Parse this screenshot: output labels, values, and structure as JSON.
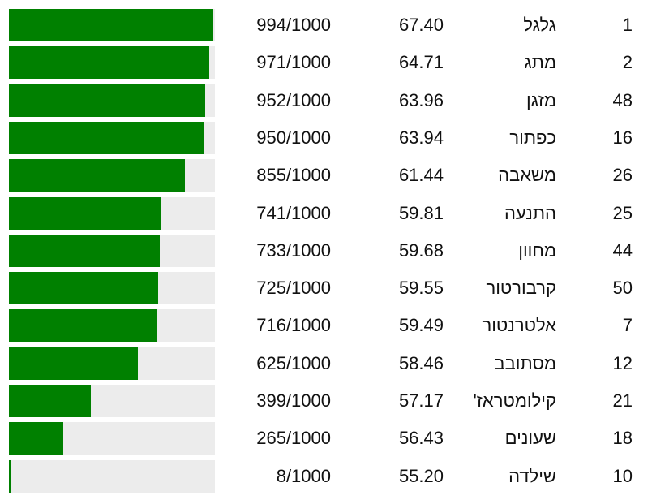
{
  "bar_range": [
    0,
    1000
  ],
  "rows": [
    {
      "rank": 1,
      "word": "גלגל",
      "similarity": "67.40",
      "progress": {
        "value": 994,
        "label": "994/1000"
      }
    },
    {
      "rank": 2,
      "word": "מתג",
      "similarity": "64.71",
      "progress": {
        "value": 971,
        "label": "971/1000"
      }
    },
    {
      "rank": 48,
      "word": "מזגן",
      "similarity": "63.96",
      "progress": {
        "value": 952,
        "label": "952/1000"
      }
    },
    {
      "rank": 16,
      "word": "כפתור",
      "similarity": "63.94",
      "progress": {
        "value": 950,
        "label": "950/1000"
      }
    },
    {
      "rank": 26,
      "word": "משאבה",
      "similarity": "61.44",
      "progress": {
        "value": 855,
        "label": "855/1000"
      }
    },
    {
      "rank": 25,
      "word": "התנעה",
      "similarity": "59.81",
      "progress": {
        "value": 741,
        "label": "741/1000"
      }
    },
    {
      "rank": 44,
      "word": "מחוון",
      "similarity": "59.68",
      "progress": {
        "value": 733,
        "label": "733/1000"
      }
    },
    {
      "rank": 50,
      "word": "קרבורטור",
      "similarity": "59.55",
      "progress": {
        "value": 725,
        "label": "725/1000"
      }
    },
    {
      "rank": 7,
      "word": "אלטרנטור",
      "similarity": "59.49",
      "progress": {
        "value": 716,
        "label": "716/1000"
      }
    },
    {
      "rank": 12,
      "word": "מסתובב",
      "similarity": "58.46",
      "progress": {
        "value": 625,
        "label": "625/1000"
      }
    },
    {
      "rank": 21,
      "word": "קילומטראז'",
      "similarity": "57.17",
      "progress": {
        "value": 399,
        "label": "399/1000"
      }
    },
    {
      "rank": 18,
      "word": "שעונים",
      "similarity": "56.43",
      "progress": {
        "value": 265,
        "label": "265/1000"
      }
    },
    {
      "rank": 10,
      "word": "שילדה",
      "similarity": "55.20",
      "progress": {
        "value": 8,
        "label": "8/1000"
      }
    }
  ]
}
